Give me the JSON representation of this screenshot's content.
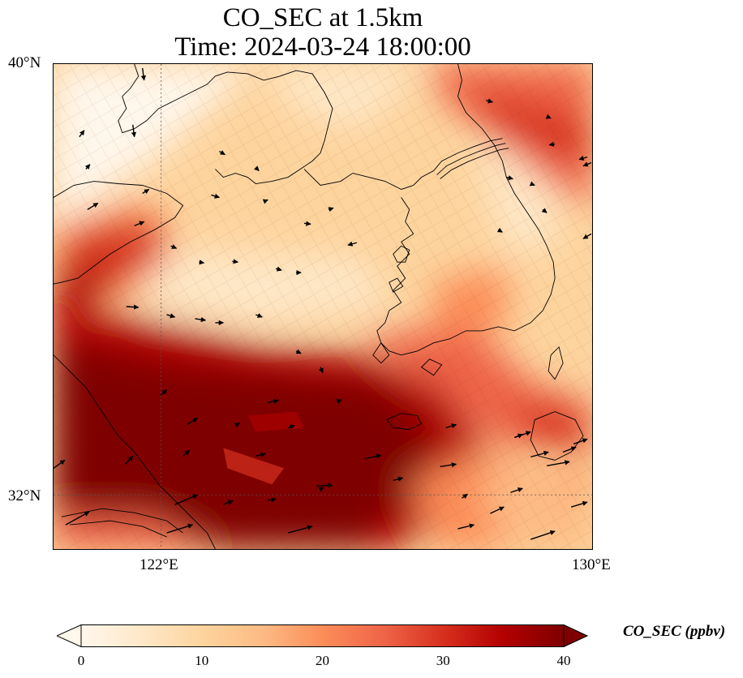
{
  "title": {
    "line1": "CO_SEC at 1.5km",
    "line2": "Time: 2024-03-24 18:00:00"
  },
  "axes": {
    "lat_ticks": [
      {
        "label": "40°N",
        "value": 40
      },
      {
        "label": "32°N",
        "value": 32
      }
    ],
    "lon_ticks": [
      {
        "label": "122°E",
        "value": 122
      },
      {
        "label": "130°E",
        "value": 130
      }
    ],
    "lon_range": [
      120,
      130
    ],
    "lat_range": [
      31,
      40
    ],
    "gridlines": "dotted at 122°E and 32°N"
  },
  "colorbar": {
    "label": "CO_SEC (ppbv)",
    "ticks": [
      "0",
      "10",
      "20",
      "30",
      "40"
    ],
    "range": [
      0,
      40
    ],
    "colormap": "OrRd",
    "colors": [
      "#fff7ec",
      "#fee8c8",
      "#fdd49e",
      "#fdbb84",
      "#fc8d59",
      "#ef6548",
      "#d7301f",
      "#b30000",
      "#7f0000"
    ]
  },
  "chart_data": {
    "type": "heatmap",
    "variable": "CO_SEC",
    "units": "ppbv",
    "level": "1.5km",
    "time": "2024-03-24 18:00:00",
    "lon_range": [
      120,
      130
    ],
    "lat_range": [
      31,
      40
    ],
    "value_range": [
      0,
      40
    ],
    "features": [
      "coastlines",
      "wind vectors"
    ]
  }
}
